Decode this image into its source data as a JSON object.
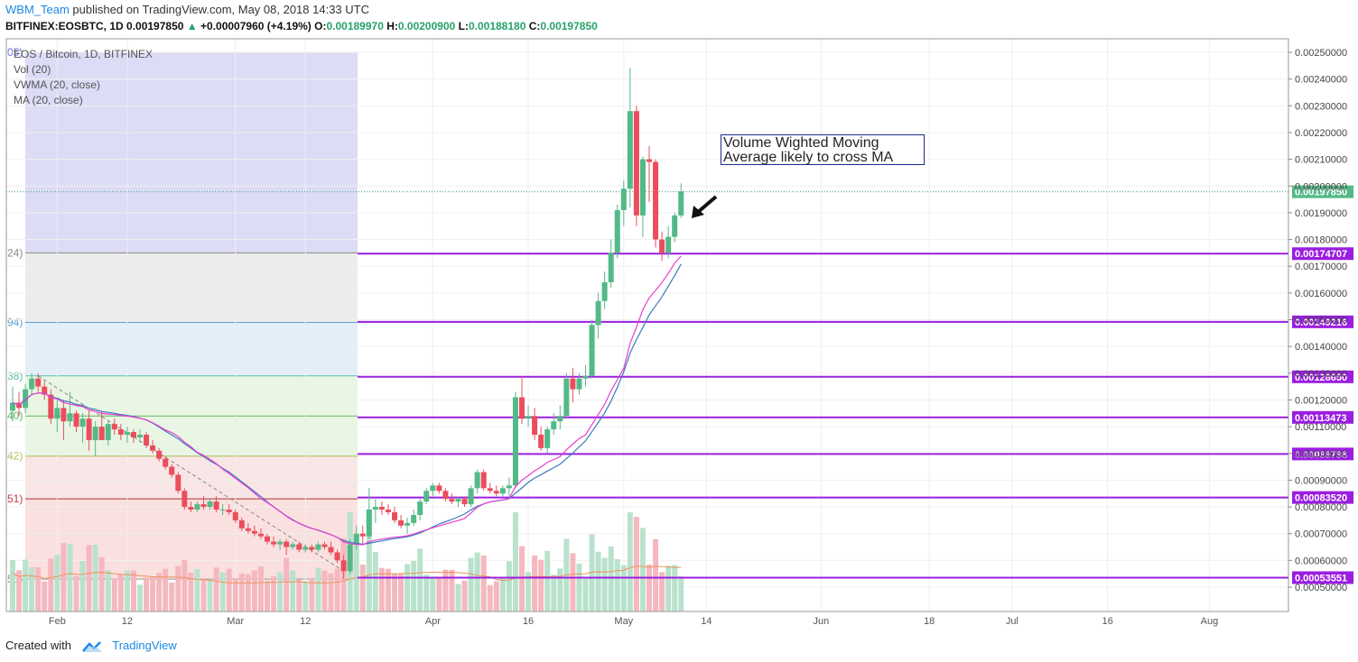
{
  "header": {
    "author": "WBM_Team",
    "published": "published on TradingView.com, May 08, 2018 14:33 UTC",
    "symbol": "BITFINEX:EOSBTC, 1D",
    "last": "0.00197850",
    "change": "+0.00007960 (+4.19%)",
    "o_label": "O:",
    "o": "0.00189970",
    "h_label": "H:",
    "h": "0.00200900",
    "l_label": "L:",
    "l": "0.00188180",
    "c_label": "C:",
    "c": "0.00197850"
  },
  "legend": {
    "line1": "EOS / Bitcoin, 1D, BITFINEX",
    "line2": "Vol (20)",
    "line3": "VWMA (20, close)",
    "line4": "MA (20, close)"
  },
  "annotation": {
    "line1": "Volume Wighted Moving",
    "line2": "Average likely to cross MA"
  },
  "footer": {
    "created_with": "Created with",
    "brand": "TradingView"
  },
  "colors": {
    "up": "#53b987",
    "down": "#eb4d5c",
    "vol_up": "#b9e2cd",
    "vol_down": "#f5b8bf",
    "vwma": "#e83ed0",
    "ma": "#3b7cb8",
    "vol_ma": "#f0925a",
    "level": "#9b1ee0",
    "price_label": "#53b987",
    "accent": "#1e88e5"
  },
  "chart_data": {
    "type": "candlestick",
    "title": "EOS / Bitcoin, 1D, BITFINEX",
    "x_ticks": [
      "Feb",
      "12",
      "Mar",
      "12",
      "Apr",
      "16",
      "May",
      "14",
      "Jun",
      "18",
      "Jul",
      "16",
      "Aug"
    ],
    "y_ticks": [
      "0.00050000",
      "0.00060000",
      "0.00070000",
      "0.00080000",
      "0.00090000",
      "0.00100000",
      "0.00110000",
      "0.00120000",
      "0.00130000",
      "0.00140000",
      "0.00150000",
      "0.00160000",
      "0.00170000",
      "0.00180000",
      "0.00190000",
      "0.00200000",
      "0.00210000",
      "0.00220000",
      "0.00230000",
      "0.00240000",
      "0.00250000"
    ],
    "ylim": [
      0.00045,
      0.00255
    ],
    "last_price_label": "0.00197850",
    "last_price": 0.0019785,
    "horizontal_levels": [
      {
        "value": 0.00174707,
        "label": "0.00174707"
      },
      {
        "value": 0.00149216,
        "label": "0.00149216"
      },
      {
        "value": 0.0012865,
        "label": "0.00128650"
      },
      {
        "value": 0.00113473,
        "label": "0.00113473"
      },
      {
        "value": 0.00099798,
        "label": "0.00099798"
      },
      {
        "value": 0.0008352,
        "label": "0.00083520"
      },
      {
        "value": 0.00053551,
        "label": "0.00053551"
      }
    ],
    "fib_left_labels": [
      "05)",
      "24)",
      "94)",
      "38)",
      "40)",
      "42)",
      "51)",
      "56)"
    ],
    "fib_zones": [
      {
        "from": 0.0025,
        "to": 0.00175,
        "color": "#dcdcf6"
      },
      {
        "from": 0.00175,
        "to": 0.00149,
        "color": "#ececec"
      },
      {
        "from": 0.00149,
        "to": 0.00129,
        "color": "#e3eff8"
      },
      {
        "from": 0.00129,
        "to": 0.00099,
        "color": "#e9f6e4"
      },
      {
        "from": 0.00099,
        "to": 0.00083,
        "color": "#f8e6e6"
      },
      {
        "from": 0.00083,
        "to": 0.00053,
        "color": "#fbe0e0"
      }
    ],
    "candles": [
      {
        "date": "2018-01-25",
        "o": 0.00116,
        "h": 0.00125,
        "l": 0.00112,
        "c": 0.00119
      },
      {
        "date": "2018-01-26",
        "o": 0.00119,
        "h": 0.00123,
        "l": 0.00114,
        "c": 0.00117
      },
      {
        "date": "2018-01-27",
        "o": 0.00117,
        "h": 0.00126,
        "l": 0.00115,
        "c": 0.00124
      },
      {
        "date": "2018-01-28",
        "o": 0.00124,
        "h": 0.0013,
        "l": 0.00122,
        "c": 0.00128
      },
      {
        "date": "2018-01-29",
        "o": 0.00128,
        "h": 0.0013,
        "l": 0.00123,
        "c": 0.00125
      },
      {
        "date": "2018-01-30",
        "o": 0.00125,
        "h": 0.00127,
        "l": 0.0012,
        "c": 0.00122
      },
      {
        "date": "2018-01-31",
        "o": 0.00122,
        "h": 0.00124,
        "l": 0.00111,
        "c": 0.00113
      },
      {
        "date": "2018-02-01",
        "o": 0.00113,
        "h": 0.0012,
        "l": 0.00108,
        "c": 0.00117
      },
      {
        "date": "2018-02-02",
        "o": 0.00117,
        "h": 0.0012,
        "l": 0.00105,
        "c": 0.00112
      },
      {
        "date": "2018-02-03",
        "o": 0.00112,
        "h": 0.00123,
        "l": 0.0011,
        "c": 0.00115
      },
      {
        "date": "2018-02-04",
        "o": 0.00115,
        "h": 0.00116,
        "l": 0.00108,
        "c": 0.0011
      },
      {
        "date": "2018-02-05",
        "o": 0.0011,
        "h": 0.00115,
        "l": 0.00104,
        "c": 0.00113
      },
      {
        "date": "2018-02-06",
        "o": 0.00113,
        "h": 0.00116,
        "l": 0.00101,
        "c": 0.00105
      },
      {
        "date": "2018-02-07",
        "o": 0.00105,
        "h": 0.00112,
        "l": 0.00099,
        "c": 0.0011
      },
      {
        "date": "2018-02-08",
        "o": 0.0011,
        "h": 0.00116,
        "l": 0.00107,
        "c": 0.00105
      },
      {
        "date": "2018-02-09",
        "o": 0.00105,
        "h": 0.00112,
        "l": 0.00103,
        "c": 0.00111
      },
      {
        "date": "2018-02-10",
        "o": 0.00111,
        "h": 0.00113,
        "l": 0.00107,
        "c": 0.00109
      },
      {
        "date": "2018-02-11",
        "o": 0.00109,
        "h": 0.00111,
        "l": 0.00105,
        "c": 0.00107
      },
      {
        "date": "2018-02-12",
        "o": 0.00107,
        "h": 0.0011,
        "l": 0.00104,
        "c": 0.00108
      },
      {
        "date": "2018-02-13",
        "o": 0.00108,
        "h": 0.00109,
        "l": 0.00104,
        "c": 0.00106
      },
      {
        "date": "2018-02-14",
        "o": 0.00106,
        "h": 0.00109,
        "l": 0.00104,
        "c": 0.00107
      },
      {
        "date": "2018-02-15",
        "o": 0.00107,
        "h": 0.00108,
        "l": 0.00102,
        "c": 0.00103
      },
      {
        "date": "2018-02-16",
        "o": 0.00103,
        "h": 0.00105,
        "l": 0.001,
        "c": 0.00101
      },
      {
        "date": "2018-02-17",
        "o": 0.00101,
        "h": 0.00102,
        "l": 0.00097,
        "c": 0.00098
      },
      {
        "date": "2018-02-18",
        "o": 0.00098,
        "h": 0.00099,
        "l": 0.00094,
        "c": 0.00095
      },
      {
        "date": "2018-02-19",
        "o": 0.00095,
        "h": 0.00096,
        "l": 0.00091,
        "c": 0.00092
      },
      {
        "date": "2018-02-20",
        "o": 0.00092,
        "h": 0.00093,
        "l": 0.00085,
        "c": 0.00086
      },
      {
        "date": "2018-02-21",
        "o": 0.00086,
        "h": 0.00087,
        "l": 0.00079,
        "c": 0.0008
      },
      {
        "date": "2018-02-22",
        "o": 0.0008,
        "h": 0.00082,
        "l": 0.00078,
        "c": 0.00079
      },
      {
        "date": "2018-02-23",
        "o": 0.00079,
        "h": 0.00082,
        "l": 0.00078,
        "c": 0.00081
      },
      {
        "date": "2018-02-24",
        "o": 0.00081,
        "h": 0.00084,
        "l": 0.00079,
        "c": 0.0008
      },
      {
        "date": "2018-02-25",
        "o": 0.0008,
        "h": 0.00083,
        "l": 0.00079,
        "c": 0.00082
      },
      {
        "date": "2018-02-26",
        "o": 0.00082,
        "h": 0.00084,
        "l": 0.00078,
        "c": 0.00079
      },
      {
        "date": "2018-02-27",
        "o": 0.00079,
        "h": 0.00081,
        "l": 0.00077,
        "c": 0.00079
      },
      {
        "date": "2018-02-28",
        "o": 0.00079,
        "h": 0.00081,
        "l": 0.00077,
        "c": 0.00078
      },
      {
        "date": "2018-03-01",
        "o": 0.00078,
        "h": 0.00079,
        "l": 0.00074,
        "c": 0.00075
      },
      {
        "date": "2018-03-02",
        "o": 0.00075,
        "h": 0.00076,
        "l": 0.00071,
        "c": 0.00072
      },
      {
        "date": "2018-03-03",
        "o": 0.00072,
        "h": 0.00074,
        "l": 0.0007,
        "c": 0.00071
      },
      {
        "date": "2018-03-04",
        "o": 0.00071,
        "h": 0.00073,
        "l": 0.00069,
        "c": 0.0007
      },
      {
        "date": "2018-03-05",
        "o": 0.0007,
        "h": 0.00072,
        "l": 0.00068,
        "c": 0.00069
      },
      {
        "date": "2018-03-06",
        "o": 0.00069,
        "h": 0.0007,
        "l": 0.00066,
        "c": 0.00067
      },
      {
        "date": "2018-03-07",
        "o": 0.00067,
        "h": 0.00069,
        "l": 0.00065,
        "c": 0.00066
      },
      {
        "date": "2018-03-08",
        "o": 0.00066,
        "h": 0.00068,
        "l": 0.00064,
        "c": 0.00067
      },
      {
        "date": "2018-03-09",
        "o": 0.00067,
        "h": 0.00068,
        "l": 0.00062,
        "c": 0.00065
      },
      {
        "date": "2018-03-10",
        "o": 0.00065,
        "h": 0.00067,
        "l": 0.00064,
        "c": 0.00066
      },
      {
        "date": "2018-03-11",
        "o": 0.00066,
        "h": 0.00067,
        "l": 0.00063,
        "c": 0.00064
      },
      {
        "date": "2018-03-12",
        "o": 0.00064,
        "h": 0.00066,
        "l": 0.00063,
        "c": 0.00065
      },
      {
        "date": "2018-03-13",
        "o": 0.00065,
        "h": 0.00066,
        "l": 0.00063,
        "c": 0.00064
      },
      {
        "date": "2018-03-14",
        "o": 0.00064,
        "h": 0.00067,
        "l": 0.00063,
        "c": 0.00066
      },
      {
        "date": "2018-03-15",
        "o": 0.00066,
        "h": 0.00067,
        "l": 0.00064,
        "c": 0.00065
      },
      {
        "date": "2018-03-16",
        "o": 0.00065,
        "h": 0.00067,
        "l": 0.00062,
        "c": 0.00063
      },
      {
        "date": "2018-03-17",
        "o": 0.00063,
        "h": 0.00064,
        "l": 0.00059,
        "c": 0.0006
      },
      {
        "date": "2018-03-18",
        "o": 0.0006,
        "h": 0.00062,
        "l": 0.00053,
        "c": 0.00056
      },
      {
        "date": "2018-03-19",
        "o": 0.00056,
        "h": 0.00068,
        "l": 0.00055,
        "c": 0.00066
      },
      {
        "date": "2018-03-20",
        "o": 0.00066,
        "h": 0.00073,
        "l": 0.00064,
        "c": 0.0007
      },
      {
        "date": "2018-03-21",
        "o": 0.0007,
        "h": 0.00073,
        "l": 0.00066,
        "c": 0.00069
      },
      {
        "date": "2018-03-22",
        "o": 0.00069,
        "h": 0.00087,
        "l": 0.00068,
        "c": 0.00079
      },
      {
        "date": "2018-03-23",
        "o": 0.00079,
        "h": 0.00083,
        "l": 0.00074,
        "c": 0.0008
      },
      {
        "date": "2018-03-24",
        "o": 0.0008,
        "h": 0.00082,
        "l": 0.00077,
        "c": 0.00079
      },
      {
        "date": "2018-03-25",
        "o": 0.00079,
        "h": 0.00081,
        "l": 0.00077,
        "c": 0.00078
      },
      {
        "date": "2018-03-26",
        "o": 0.00078,
        "h": 0.0008,
        "l": 0.00074,
        "c": 0.00075
      },
      {
        "date": "2018-03-27",
        "o": 0.00075,
        "h": 0.00077,
        "l": 0.00072,
        "c": 0.00073
      },
      {
        "date": "2018-03-28",
        "o": 0.00073,
        "h": 0.00076,
        "l": 0.0007,
        "c": 0.00074
      },
      {
        "date": "2018-03-29",
        "o": 0.00074,
        "h": 0.00079,
        "l": 0.00073,
        "c": 0.00077
      },
      {
        "date": "2018-03-30",
        "o": 0.00077,
        "h": 0.00083,
        "l": 0.00075,
        "c": 0.00082
      },
      {
        "date": "2018-03-31",
        "o": 0.00082,
        "h": 0.00087,
        "l": 0.00081,
        "c": 0.00086
      },
      {
        "date": "2018-04-01",
        "o": 0.00086,
        "h": 0.00089,
        "l": 0.00084,
        "c": 0.00088
      },
      {
        "date": "2018-04-02",
        "o": 0.00088,
        "h": 0.00089,
        "l": 0.00085,
        "c": 0.00086
      },
      {
        "date": "2018-04-03",
        "o": 0.00086,
        "h": 0.00087,
        "l": 0.00082,
        "c": 0.00083
      },
      {
        "date": "2018-04-04",
        "o": 0.00083,
        "h": 0.00085,
        "l": 0.00081,
        "c": 0.00082
      },
      {
        "date": "2018-04-05",
        "o": 0.00082,
        "h": 0.00084,
        "l": 0.0008,
        "c": 0.00083
      },
      {
        "date": "2018-04-06",
        "o": 0.00083,
        "h": 0.00084,
        "l": 0.0008,
        "c": 0.00081
      },
      {
        "date": "2018-04-07",
        "o": 0.00081,
        "h": 0.00088,
        "l": 0.0008,
        "c": 0.00087
      },
      {
        "date": "2018-04-08",
        "o": 0.00087,
        "h": 0.00094,
        "l": 0.00085,
        "c": 0.00093
      },
      {
        "date": "2018-04-09",
        "o": 0.00093,
        "h": 0.00094,
        "l": 0.00086,
        "c": 0.00087
      },
      {
        "date": "2018-04-10",
        "o": 0.00087,
        "h": 0.00089,
        "l": 0.00085,
        "c": 0.00086
      },
      {
        "date": "2018-04-11",
        "o": 0.00086,
        "h": 0.00088,
        "l": 0.00084,
        "c": 0.00085
      },
      {
        "date": "2018-04-12",
        "o": 0.00085,
        "h": 0.00088,
        "l": 0.00084,
        "c": 0.00087
      },
      {
        "date": "2018-04-13",
        "o": 0.00087,
        "h": 0.00091,
        "l": 0.00084,
        "c": 0.00088
      },
      {
        "date": "2018-04-14",
        "o": 0.00088,
        "h": 0.00123,
        "l": 0.00087,
        "c": 0.00121
      },
      {
        "date": "2018-04-15",
        "o": 0.00121,
        "h": 0.00129,
        "l": 0.00111,
        "c": 0.00113
      },
      {
        "date": "2018-04-16",
        "o": 0.00113,
        "h": 0.00118,
        "l": 0.0011,
        "c": 0.00114
      },
      {
        "date": "2018-04-17",
        "o": 0.00114,
        "h": 0.00117,
        "l": 0.00105,
        "c": 0.00107
      },
      {
        "date": "2018-04-18",
        "o": 0.00107,
        "h": 0.0011,
        "l": 0.00101,
        "c": 0.00102
      },
      {
        "date": "2018-04-19",
        "o": 0.00102,
        "h": 0.0011,
        "l": 0.001,
        "c": 0.00109
      },
      {
        "date": "2018-04-20",
        "o": 0.00109,
        "h": 0.00115,
        "l": 0.00107,
        "c": 0.00112
      },
      {
        "date": "2018-04-21",
        "o": 0.00112,
        "h": 0.00118,
        "l": 0.00109,
        "c": 0.00114
      },
      {
        "date": "2018-04-22",
        "o": 0.00114,
        "h": 0.0013,
        "l": 0.00113,
        "c": 0.00128
      },
      {
        "date": "2018-04-23",
        "o": 0.00128,
        "h": 0.00132,
        "l": 0.00119,
        "c": 0.00124
      },
      {
        "date": "2018-04-24",
        "o": 0.00124,
        "h": 0.0013,
        "l": 0.00122,
        "c": 0.00128
      },
      {
        "date": "2018-04-25",
        "o": 0.00128,
        "h": 0.00133,
        "l": 0.00125,
        "c": 0.00129
      },
      {
        "date": "2018-04-26",
        "o": 0.00129,
        "h": 0.0015,
        "l": 0.00128,
        "c": 0.00148
      },
      {
        "date": "2018-04-27",
        "o": 0.00148,
        "h": 0.0016,
        "l": 0.00143,
        "c": 0.00157
      },
      {
        "date": "2018-04-28",
        "o": 0.00157,
        "h": 0.00168,
        "l": 0.00154,
        "c": 0.00164
      },
      {
        "date": "2018-04-29",
        "o": 0.00164,
        "h": 0.0018,
        "l": 0.00162,
        "c": 0.00175
      },
      {
        "date": "2018-04-30",
        "o": 0.00175,
        "h": 0.00193,
        "l": 0.00173,
        "c": 0.00191
      },
      {
        "date": "2018-05-01",
        "o": 0.00191,
        "h": 0.00202,
        "l": 0.00185,
        "c": 0.00199
      },
      {
        "date": "2018-05-02",
        "o": 0.00199,
        "h": 0.00244,
        "l": 0.00192,
        "c": 0.00228
      },
      {
        "date": "2018-05-03",
        "o": 0.00228,
        "h": 0.0023,
        "l": 0.00185,
        "c": 0.00189
      },
      {
        "date": "2018-05-04",
        "o": 0.00189,
        "h": 0.00211,
        "l": 0.00181,
        "c": 0.0021
      },
      {
        "date": "2018-05-05",
        "o": 0.0021,
        "h": 0.00215,
        "l": 0.00194,
        "c": 0.00209
      },
      {
        "date": "2018-05-06",
        "o": 0.00209,
        "h": 0.0021,
        "l": 0.00177,
        "c": 0.0018
      },
      {
        "date": "2018-05-07",
        "o": 0.0018,
        "h": 0.00183,
        "l": 0.00172,
        "c": 0.00175
      },
      {
        "date": "2018-05-08",
        "o": 0.00175,
        "h": 0.00185,
        "l": 0.00173,
        "c": 0.00181
      },
      {
        "date": "2018-05-09",
        "o": 0.00181,
        "h": 0.0019,
        "l": 0.00179,
        "c": 0.00189
      },
      {
        "date": "2018-05-10",
        "o": 0.00189,
        "h": 0.00201,
        "l": 0.00188,
        "c": 0.00198
      }
    ]
  }
}
